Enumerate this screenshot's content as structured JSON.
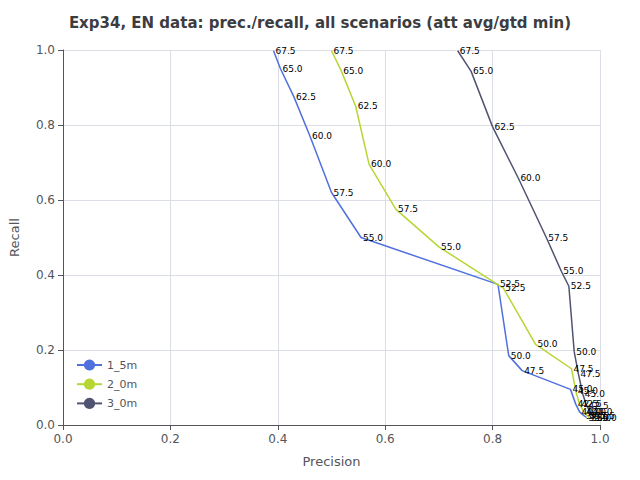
{
  "chart_data": {
    "type": "line",
    "title": "Exp34, EN data: prec./recall, all scenarios (att avg/gtd min)",
    "xlabel": "Precision",
    "ylabel": "Recall",
    "xlim": [
      0.0,
      1.0
    ],
    "ylim": [
      0.0,
      1.0
    ],
    "xticks": [
      {
        "value": 0.0,
        "label": "0.0"
      },
      {
        "value": 0.2,
        "label": "0.2"
      },
      {
        "value": 0.4,
        "label": "0.4"
      },
      {
        "value": 0.6,
        "label": "0.6"
      },
      {
        "value": 0.8,
        "label": "0.8"
      },
      {
        "value": 1.0,
        "label": "1.0"
      }
    ],
    "yticks": [
      {
        "value": 0.0,
        "label": "0.0"
      },
      {
        "value": 0.2,
        "label": "0.2"
      },
      {
        "value": 0.4,
        "label": "0.4"
      },
      {
        "value": 0.6,
        "label": "0.6"
      },
      {
        "value": 0.8,
        "label": "0.8"
      },
      {
        "value": 1.0,
        "label": "1.0"
      }
    ],
    "series": [
      {
        "name": "1_5m",
        "x": [
          0.975,
          0.97,
          0.962,
          0.955,
          0.945,
          0.855,
          0.83,
          0.81,
          0.555,
          0.5,
          0.46,
          0.43,
          0.405,
          0.392
        ],
        "values": [
          0.02,
          0.025,
          0.035,
          0.055,
          0.095,
          0.145,
          0.185,
          0.375,
          0.5,
          0.62,
          0.77,
          0.875,
          0.95,
          0.998
        ],
        "annotations": [
          "35.0",
          "37.5",
          "40.0",
          "42.5",
          "45.0",
          "47.5",
          "50.0",
          "52.5",
          "55.0",
          "57.5",
          "60.0",
          "62.5",
          "65.0",
          "67.5"
        ]
      },
      {
        "name": "2_0m",
        "x": [
          0.98,
          0.976,
          0.97,
          0.962,
          0.955,
          0.947,
          0.88,
          0.82,
          0.7,
          0.62,
          0.57,
          0.545,
          0.518,
          0.5
        ],
        "values": [
          0.02,
          0.025,
          0.035,
          0.055,
          0.09,
          0.15,
          0.215,
          0.365,
          0.475,
          0.575,
          0.695,
          0.85,
          0.945,
          0.998
        ],
        "annotations": [
          "35.0",
          "37.5",
          "40.0",
          "42.5",
          "45.0",
          "47.5",
          "50.0",
          "52.5",
          "55.0",
          "57.5",
          "60.0",
          "62.5",
          "65.0",
          "67.5"
        ]
      },
      {
        "name": "3_0m",
        "x": [
          0.99,
          0.987,
          0.982,
          0.975,
          0.968,
          0.96,
          0.952,
          0.942,
          0.928,
          0.9,
          0.848,
          0.8,
          0.76,
          0.735
        ],
        "values": [
          0.02,
          0.025,
          0.035,
          0.052,
          0.082,
          0.135,
          0.195,
          0.37,
          0.41,
          0.5,
          0.658,
          0.795,
          0.943,
          0.998
        ],
        "annotations": [
          "35.0",
          "37.5",
          "40.0",
          "42.5",
          "45.0",
          "47.5",
          "50.0",
          "52.5",
          "55.0",
          "57.5",
          "60.0",
          "62.5",
          "65.0",
          "67.5"
        ]
      }
    ],
    "legend": "lower left",
    "grid": true
  }
}
